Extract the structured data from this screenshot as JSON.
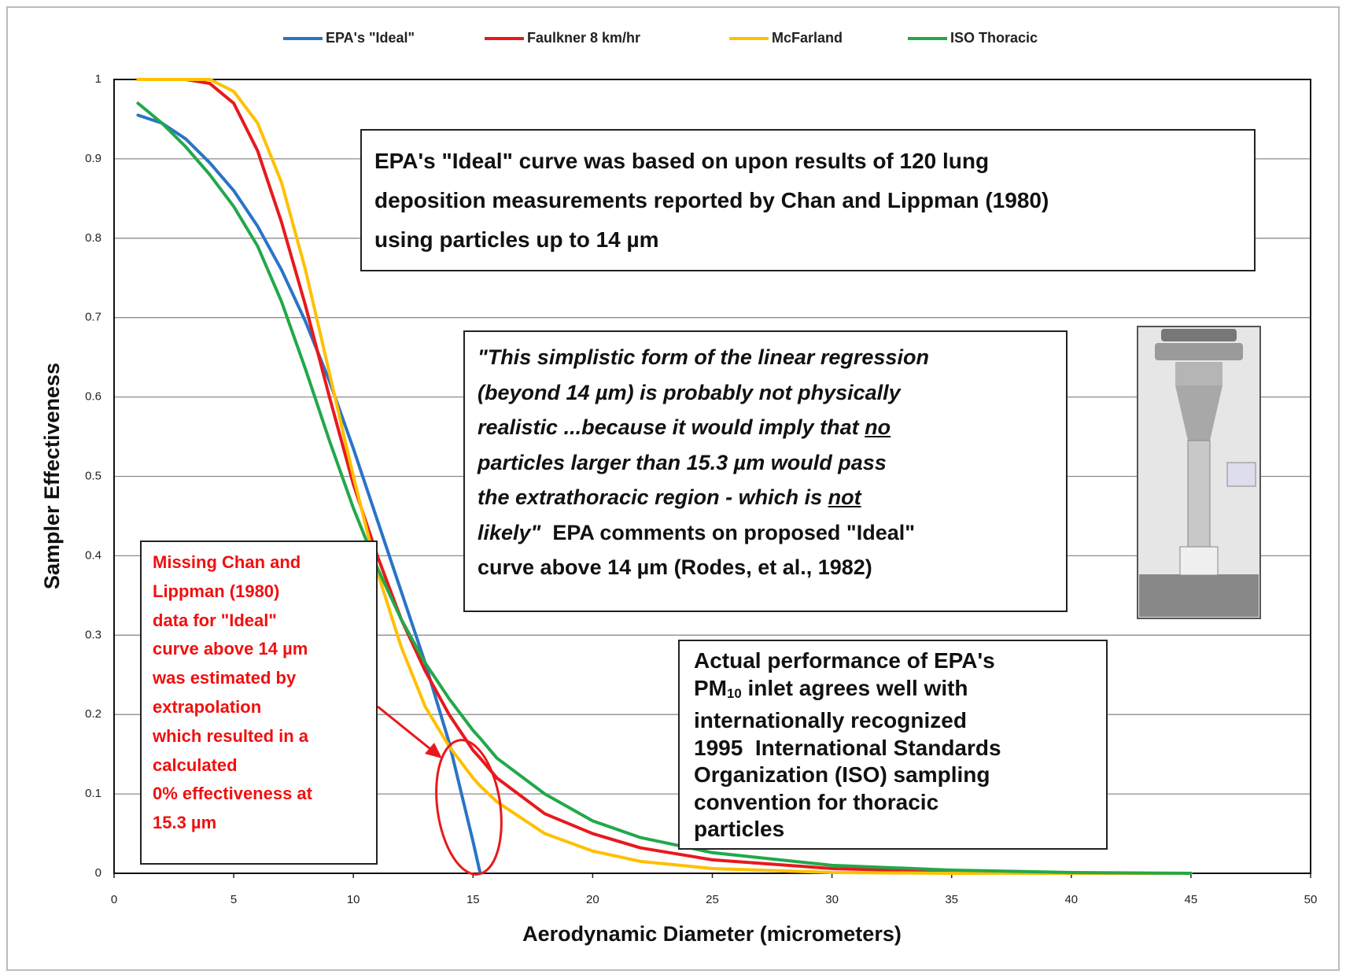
{
  "chart_data": {
    "type": "line",
    "xlabel": "Aerodynamic Diameter (micrometers)",
    "ylabel": "Sampler Effectiveness",
    "x": [
      1,
      2,
      3,
      4,
      5,
      6,
      7,
      8,
      9,
      10,
      11,
      12,
      13,
      14,
      15,
      15.3,
      16,
      18,
      20,
      22,
      25,
      30,
      35,
      40,
      45
    ],
    "series": [
      {
        "name": "EPA's \"Ideal\"",
        "color": "#2a74c6",
        "values": [
          0.955,
          0.945,
          0.925,
          0.895,
          0.86,
          0.815,
          0.76,
          0.695,
          0.62,
          0.535,
          0.445,
          0.355,
          0.265,
          0.165,
          0.04,
          0,
          null,
          null,
          null,
          null,
          null,
          null,
          null,
          null,
          null
        ]
      },
      {
        "name": "Faulkner 8 km/hr",
        "color": "#e8191c",
        "values": [
          1,
          1,
          1,
          0.995,
          0.97,
          0.91,
          0.82,
          0.715,
          0.6,
          0.49,
          0.4,
          0.32,
          0.255,
          0.2,
          0.155,
          0.145,
          0.12,
          0.075,
          0.05,
          0.032,
          0.017,
          0.006,
          0.002,
          null,
          null
        ]
      },
      {
        "name": "McFarland",
        "color": "#ffc000",
        "values": [
          1,
          1,
          1,
          1,
          0.985,
          0.945,
          0.87,
          0.76,
          0.63,
          0.5,
          0.38,
          0.285,
          0.21,
          0.16,
          0.12,
          0.11,
          0.09,
          0.05,
          0.028,
          0.015,
          0.006,
          0.001,
          0,
          0,
          0
        ]
      },
      {
        "name": "ISO Thoracic",
        "color": "#22a84a",
        "values": [
          0.97,
          0.945,
          0.915,
          0.88,
          0.84,
          0.79,
          0.72,
          0.635,
          0.545,
          0.46,
          0.385,
          0.32,
          0.265,
          0.22,
          0.18,
          0.17,
          0.145,
          0.1,
          0.066,
          0.045,
          0.026,
          0.01,
          0.004,
          0.001,
          0
        ]
      }
    ],
    "xlim": [
      0,
      50
    ],
    "ylim": [
      0,
      1
    ],
    "xticks": [
      0,
      5,
      10,
      15,
      20,
      25,
      30,
      35,
      40,
      45,
      50
    ],
    "yticks": [
      0,
      0.1,
      0.2,
      0.3,
      0.4,
      0.5,
      0.6,
      0.7,
      0.8,
      0.9,
      1
    ],
    "grid": true,
    "legend": "top",
    "annotations": [
      {
        "lines": [
          [
            "EPA's \"Ideal\" curve was based on upon results of 120 lung"
          ],
          [
            "deposition measurements reported by Chan and Lippman (1980)"
          ],
          [
            "using particles up to 14 µm"
          ]
        ]
      },
      {
        "lines": [
          [
            "\"This simplistic form of the linear regression"
          ],
          [
            "(beyond 14 µm) is probably not physically"
          ],
          [
            "realistic ...because it would imply that ",
            "no"
          ],
          [
            "particles larger than 15.3 µm would pass"
          ],
          [
            "the extrathoracic region - which is ",
            "not"
          ],
          [
            "likely\"",
            "  EPA comments on proposed \"Ideal\""
          ],
          [
            "curve above 14 µm (Rodes, et al., 1982)"
          ]
        ]
      },
      {
        "lines": [
          [
            "Actual performance of EPA's"
          ],
          [
            "PM",
            "10",
            " inlet agrees well with"
          ],
          [
            "internationally recognized"
          ],
          [
            "1995  International Standards"
          ],
          [
            "Organization (ISO) sampling"
          ],
          [
            "convention for thoracic"
          ],
          [
            "particles"
          ]
        ]
      },
      {
        "lines": [
          [
            "Missing Chan and"
          ],
          [
            "Lippman (1980)"
          ],
          [
            "data for \"Ideal\""
          ],
          [
            "curve above 14 µm"
          ],
          [
            "was estimated by"
          ],
          [
            "extrapolation"
          ],
          [
            "which resulted in a"
          ],
          [
            "calculated"
          ],
          [
            "0% effectiveness at"
          ],
          [
            "15.3 µm"
          ]
        ]
      }
    ]
  }
}
